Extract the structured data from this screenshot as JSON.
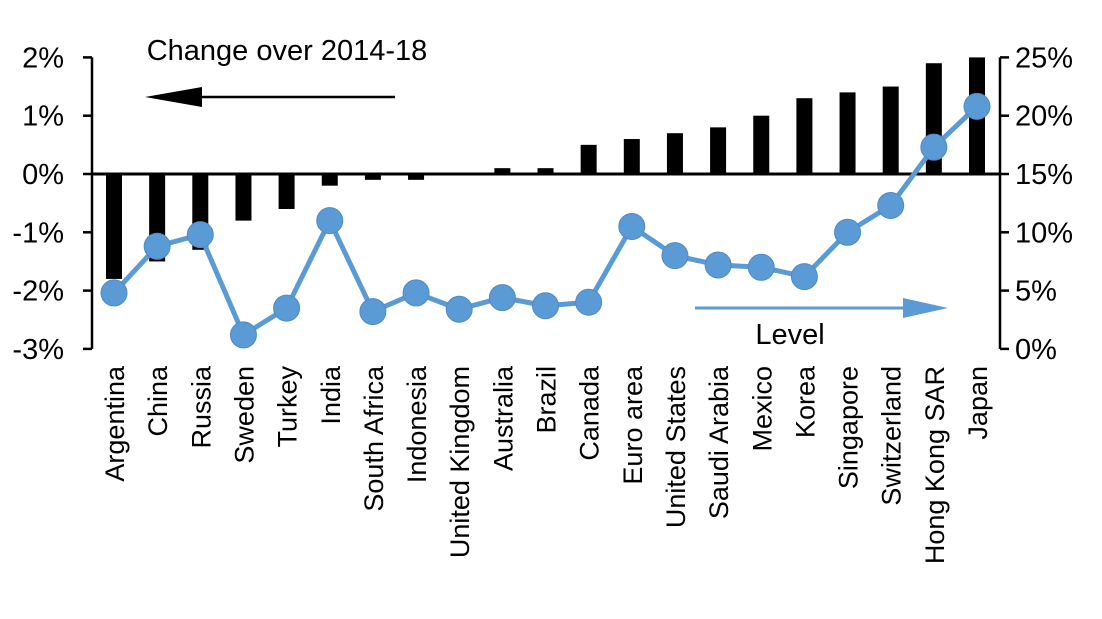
{
  "chart_data": {
    "type": "combo-bar-line",
    "categories": [
      "Argentina",
      "China",
      "Russia",
      "Sweden",
      "Turkey",
      "India",
      "South Africa",
      "Indonesia",
      "United Kingdom",
      "Australia",
      "Brazil",
      "Canada",
      "Euro area",
      "United States",
      "Saudi Arabia",
      "Mexico",
      "Korea",
      "Singapore",
      "Switzerland",
      "Hong Kong SAR",
      "Japan"
    ],
    "series": [
      {
        "name": "Change over 2014-18",
        "type": "bar",
        "axis": "left",
        "color": "#000000",
        "values": [
          -1.8,
          -1.5,
          -1.3,
          -0.8,
          -0.6,
          -0.2,
          -0.1,
          -0.1,
          0.0,
          0.1,
          0.1,
          0.5,
          0.6,
          0.7,
          0.8,
          1.0,
          1.3,
          1.4,
          1.5,
          1.9,
          2.0
        ]
      },
      {
        "name": "Level",
        "type": "line",
        "axis": "right",
        "color": "#5B9BD5",
        "values": [
          4.8,
          8.8,
          9.8,
          1.2,
          3.5,
          11.0,
          3.2,
          4.8,
          3.4,
          4.4,
          3.7,
          4.0,
          10.5,
          8.0,
          7.2,
          7.0,
          6.2,
          10.0,
          12.3,
          17.3,
          20.8
        ]
      }
    ],
    "left_axis": {
      "min": -3,
      "max": 2,
      "step": 1,
      "tick_labels": [
        "2%",
        "1%",
        "0%",
        "-1%",
        "-2%",
        "-3%"
      ]
    },
    "right_axis": {
      "min": 0,
      "max": 25,
      "step": 5,
      "tick_labels": [
        "25%",
        "20%",
        "15%",
        "10%",
        "5%",
        "0%"
      ]
    },
    "layout_hints": {
      "grid": false,
      "bar_annotation_arrow": "left",
      "line_annotation_arrow": "right",
      "category_labels_rotated": true
    },
    "colors": {
      "background": "#FFFFFF",
      "bar": "#000000",
      "line": "#5B9BD5",
      "marker_edge": "#4E8AC8",
      "text": "#000000"
    }
  }
}
